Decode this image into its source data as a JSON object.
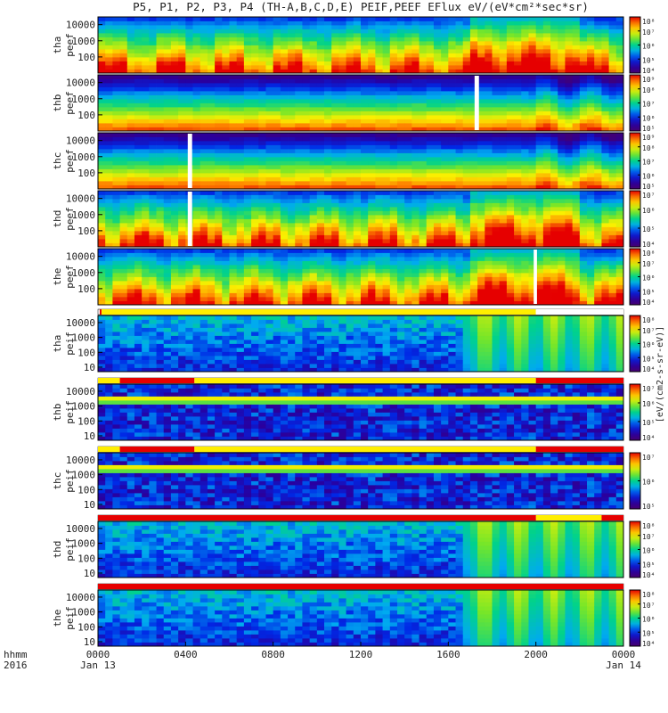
{
  "title": "P5, P1, P2, P3, P4 (TH-A,B,C,D,E) PEIF,PEEF EFlux eV/(eV*cm²*sec*sr)",
  "colorbar_label": "[eV/(cm2-s-sr-eV)]",
  "time_axis": {
    "caption_line1": "hhmm",
    "caption_line2": "2016",
    "ticks": [
      {
        "label": "0000",
        "sub": "Jan 13",
        "hour": 0
      },
      {
        "label": "0400",
        "sub": "",
        "hour": 4
      },
      {
        "label": "0800",
        "sub": "",
        "hour": 8
      },
      {
        "label": "1200",
        "sub": "",
        "hour": 12
      },
      {
        "label": "1600",
        "sub": "",
        "hour": 16
      },
      {
        "label": "2000",
        "sub": "",
        "hour": 20
      },
      {
        "label": "0000",
        "sub": "Jan 14",
        "hour": 24
      }
    ]
  },
  "chart_data": {
    "type": "heatmap",
    "x_unit": "hours since 2016-01-13 00:00 UT",
    "xlim": [
      0,
      24
    ],
    "yscale": "log",
    "panels": [
      {
        "ylabel": [
          "tha",
          "peef"
        ],
        "yticks": [
          "100",
          "1000",
          "10000"
        ],
        "yrange": [
          10,
          30000
        ],
        "cbar_ticks": [
          "10⁴",
          "10⁵",
          "10⁶",
          "10⁷",
          "10⁸"
        ],
        "cbar_range": [
          4,
          8
        ]
      },
      {
        "ylabel": [
          "thb",
          "peef"
        ],
        "yticks": [
          "100",
          "1000",
          "10000"
        ],
        "yrange": [
          10,
          30000
        ],
        "cbar_ticks": [
          "10⁵",
          "10⁶",
          "10⁷",
          "10⁸",
          "10⁹"
        ],
        "cbar_range": [
          5,
          9
        ]
      },
      {
        "ylabel": [
          "thc",
          "peef"
        ],
        "yticks": [
          "100",
          "1000",
          "10000"
        ],
        "yrange": [
          10,
          30000
        ],
        "cbar_ticks": [
          "10⁵",
          "10⁶",
          "10⁷",
          "10⁸",
          "10⁹"
        ],
        "cbar_range": [
          5,
          9
        ]
      },
      {
        "ylabel": [
          "thd",
          "peef"
        ],
        "yticks": [
          "100",
          "1000",
          "10000"
        ],
        "yrange": [
          10,
          30000
        ],
        "cbar_ticks": [
          "10⁴",
          "10⁵",
          "10⁶",
          "10⁷"
        ],
        "cbar_range": [
          4,
          7
        ]
      },
      {
        "ylabel": [
          "the",
          "peef"
        ],
        "yticks": [
          "100",
          "1000",
          "10000"
        ],
        "yrange": [
          10,
          30000
        ],
        "cbar_ticks": [
          "10⁴",
          "10⁵",
          "10⁶",
          "10⁷",
          "10⁸"
        ],
        "cbar_range": [
          4,
          8
        ]
      },
      {
        "ylabel": [
          "tha",
          "peif"
        ],
        "yticks": [
          "10",
          "100",
          "1000",
          "10000"
        ],
        "yrange": [
          5,
          30000
        ],
        "cbar_ticks": [
          "10⁴",
          "10⁵",
          "10⁶",
          "10⁷",
          "10⁸"
        ],
        "cbar_range": [
          4,
          8
        ]
      },
      {
        "ylabel": [
          "thb",
          "peif"
        ],
        "yticks": [
          "10",
          "100",
          "1000",
          "10000"
        ],
        "yrange": [
          5,
          30000
        ],
        "cbar_ticks": [
          "10⁴",
          "10⁵",
          "10⁶",
          "10⁷"
        ],
        "cbar_range": [
          4,
          7
        ]
      },
      {
        "ylabel": [
          "thc",
          "peif"
        ],
        "yticks": [
          "10",
          "100",
          "1000",
          "10000"
        ],
        "yrange": [
          5,
          30000
        ],
        "cbar_ticks": [
          "10⁵",
          "10⁶",
          "10⁷"
        ],
        "cbar_range": [
          5,
          7
        ]
      },
      {
        "ylabel": [
          "thd",
          "peif"
        ],
        "yticks": [
          "10",
          "100",
          "1000",
          "10000"
        ],
        "yrange": [
          5,
          30000
        ],
        "cbar_ticks": [
          "10⁴",
          "10⁵",
          "10⁶",
          "10⁷",
          "10⁸"
        ],
        "cbar_range": [
          4,
          8
        ]
      },
      {
        "ylabel": [
          "the",
          "peif"
        ],
        "yticks": [
          "10",
          "100",
          "1000",
          "10000"
        ],
        "yrange": [
          5,
          30000
        ],
        "cbar_ticks": [
          "10⁴",
          "10⁵",
          "10⁶",
          "10⁷",
          "10⁸"
        ],
        "cbar_range": [
          4,
          8
        ]
      }
    ],
    "mode_bars": [
      {
        "after_panel": 5,
        "red_segments": [
          [
            0.08,
            0.16
          ]
        ],
        "yellow_segments": [
          [
            0.16,
            20.0
          ]
        ],
        "white_segments": [
          [
            20.0,
            24.0
          ]
        ]
      },
      {
        "after_panel": 6,
        "red_segments": [
          [
            1.0,
            4.4
          ],
          [
            20.0,
            24.0
          ]
        ],
        "yellow_segments": [
          [
            0.0,
            1.0
          ],
          [
            4.4,
            20.0
          ]
        ]
      },
      {
        "after_panel": 7,
        "red_segments": [
          [
            1.0,
            4.4
          ],
          [
            20.0,
            24.0
          ]
        ],
        "yellow_segments": [
          [
            0.0,
            1.0
          ],
          [
            4.4,
            20.0
          ]
        ]
      },
      {
        "after_panel": 8,
        "red_segments": [
          [
            0.0,
            20.0
          ],
          [
            23.0,
            24.0
          ]
        ],
        "yellow_segments": [
          [
            20.0,
            23.0
          ]
        ]
      },
      {
        "after_panel": 9,
        "red_segments": [
          [
            0.0,
            24.0
          ]
        ],
        "yellow_segments": []
      }
    ],
    "data_gaps": [
      {
        "panel": 1,
        "from": 17.2,
        "to": 17.4
      },
      {
        "panel": 2,
        "from": 4.1,
        "to": 4.3
      },
      {
        "panel": 3,
        "from": 4.1,
        "to": 4.3
      },
      {
        "panel": 4,
        "from": 19.9,
        "to": 20.05
      }
    ]
  }
}
